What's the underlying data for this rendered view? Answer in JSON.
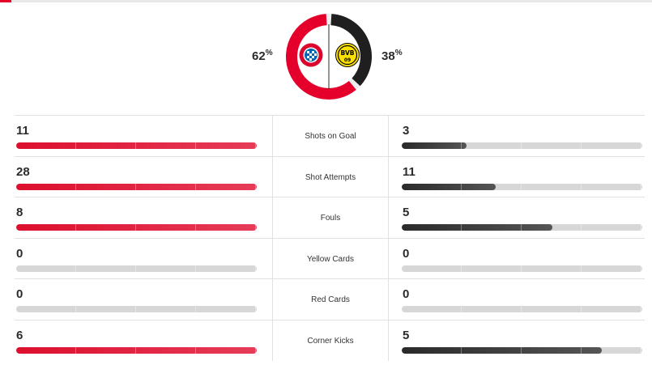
{
  "possession": {
    "home": {
      "value": "62",
      "unit": "%",
      "fraction": 0.62,
      "color": "#e4002b"
    },
    "away": {
      "value": "38",
      "unit": "%",
      "fraction": 0.38,
      "color": "#1f1f1f"
    },
    "home_logo": "fc-bayern-logo",
    "away_logo": "bvb-logo"
  },
  "logos": {
    "home_text": "FC BAYERN MÜNCHEN",
    "away_text": "BVB 09"
  },
  "stats": [
    {
      "label": "Shots on Goal",
      "home": "11",
      "away": "3",
      "home_fraction": 1.0,
      "away_fraction": 0.27
    },
    {
      "label": "Shot Attempts",
      "home": "28",
      "away": "11",
      "home_fraction": 1.0,
      "away_fraction": 0.39
    },
    {
      "label": "Fouls",
      "home": "8",
      "away": "5",
      "home_fraction": 1.0,
      "away_fraction": 0.625
    },
    {
      "label": "Yellow Cards",
      "home": "0",
      "away": "0",
      "home_fraction": 0.0,
      "away_fraction": 0.0
    },
    {
      "label": "Red Cards",
      "home": "0",
      "away": "0",
      "home_fraction": 0.0,
      "away_fraction": 0.0
    },
    {
      "label": "Corner Kicks",
      "home": "6",
      "away": "5",
      "home_fraction": 1.0,
      "away_fraction": 0.83
    }
  ]
}
